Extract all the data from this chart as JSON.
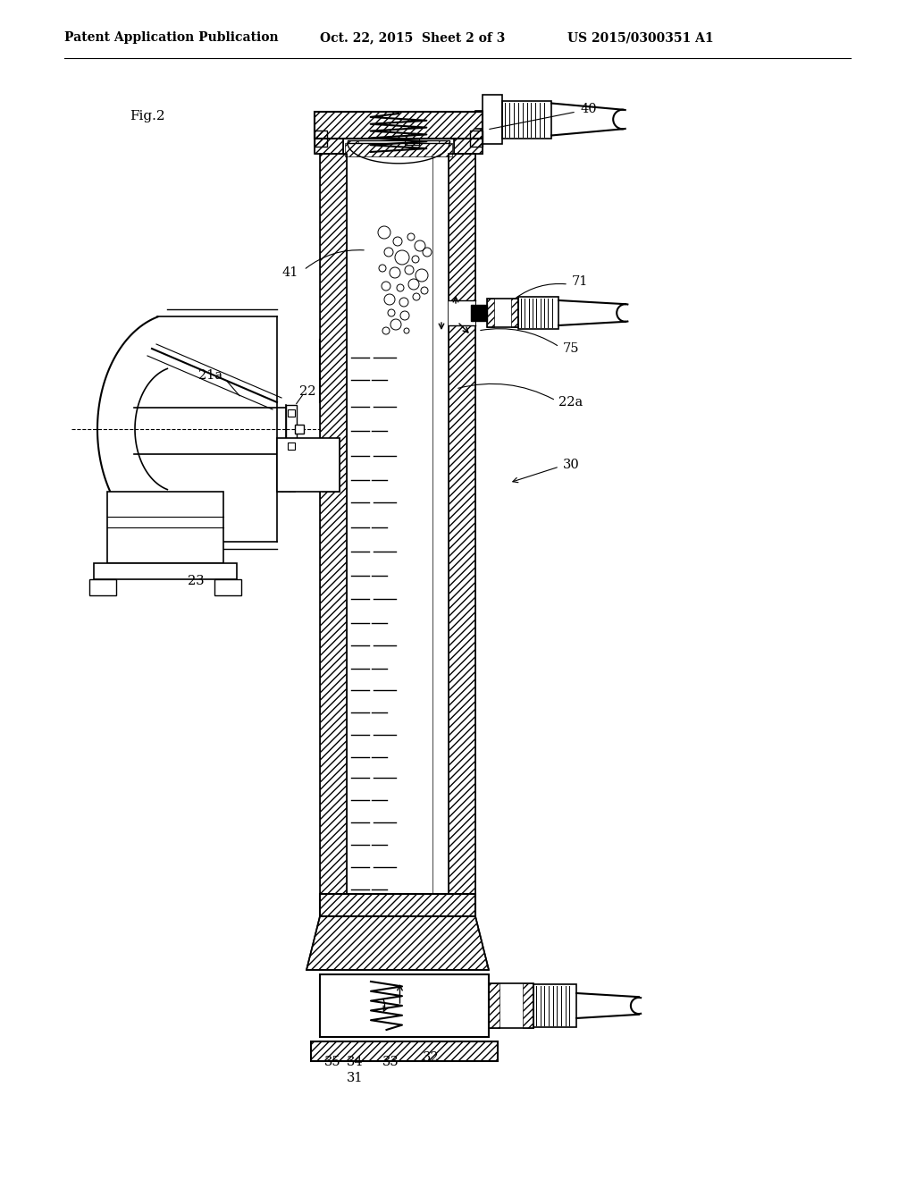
{
  "title_left": "Patent Application Publication",
  "title_mid": "Oct. 22, 2015  Sheet 2 of 3",
  "title_right": "US 2015/0300351 A1",
  "fig_label": "Fig.2",
  "bg_color": "#ffffff"
}
